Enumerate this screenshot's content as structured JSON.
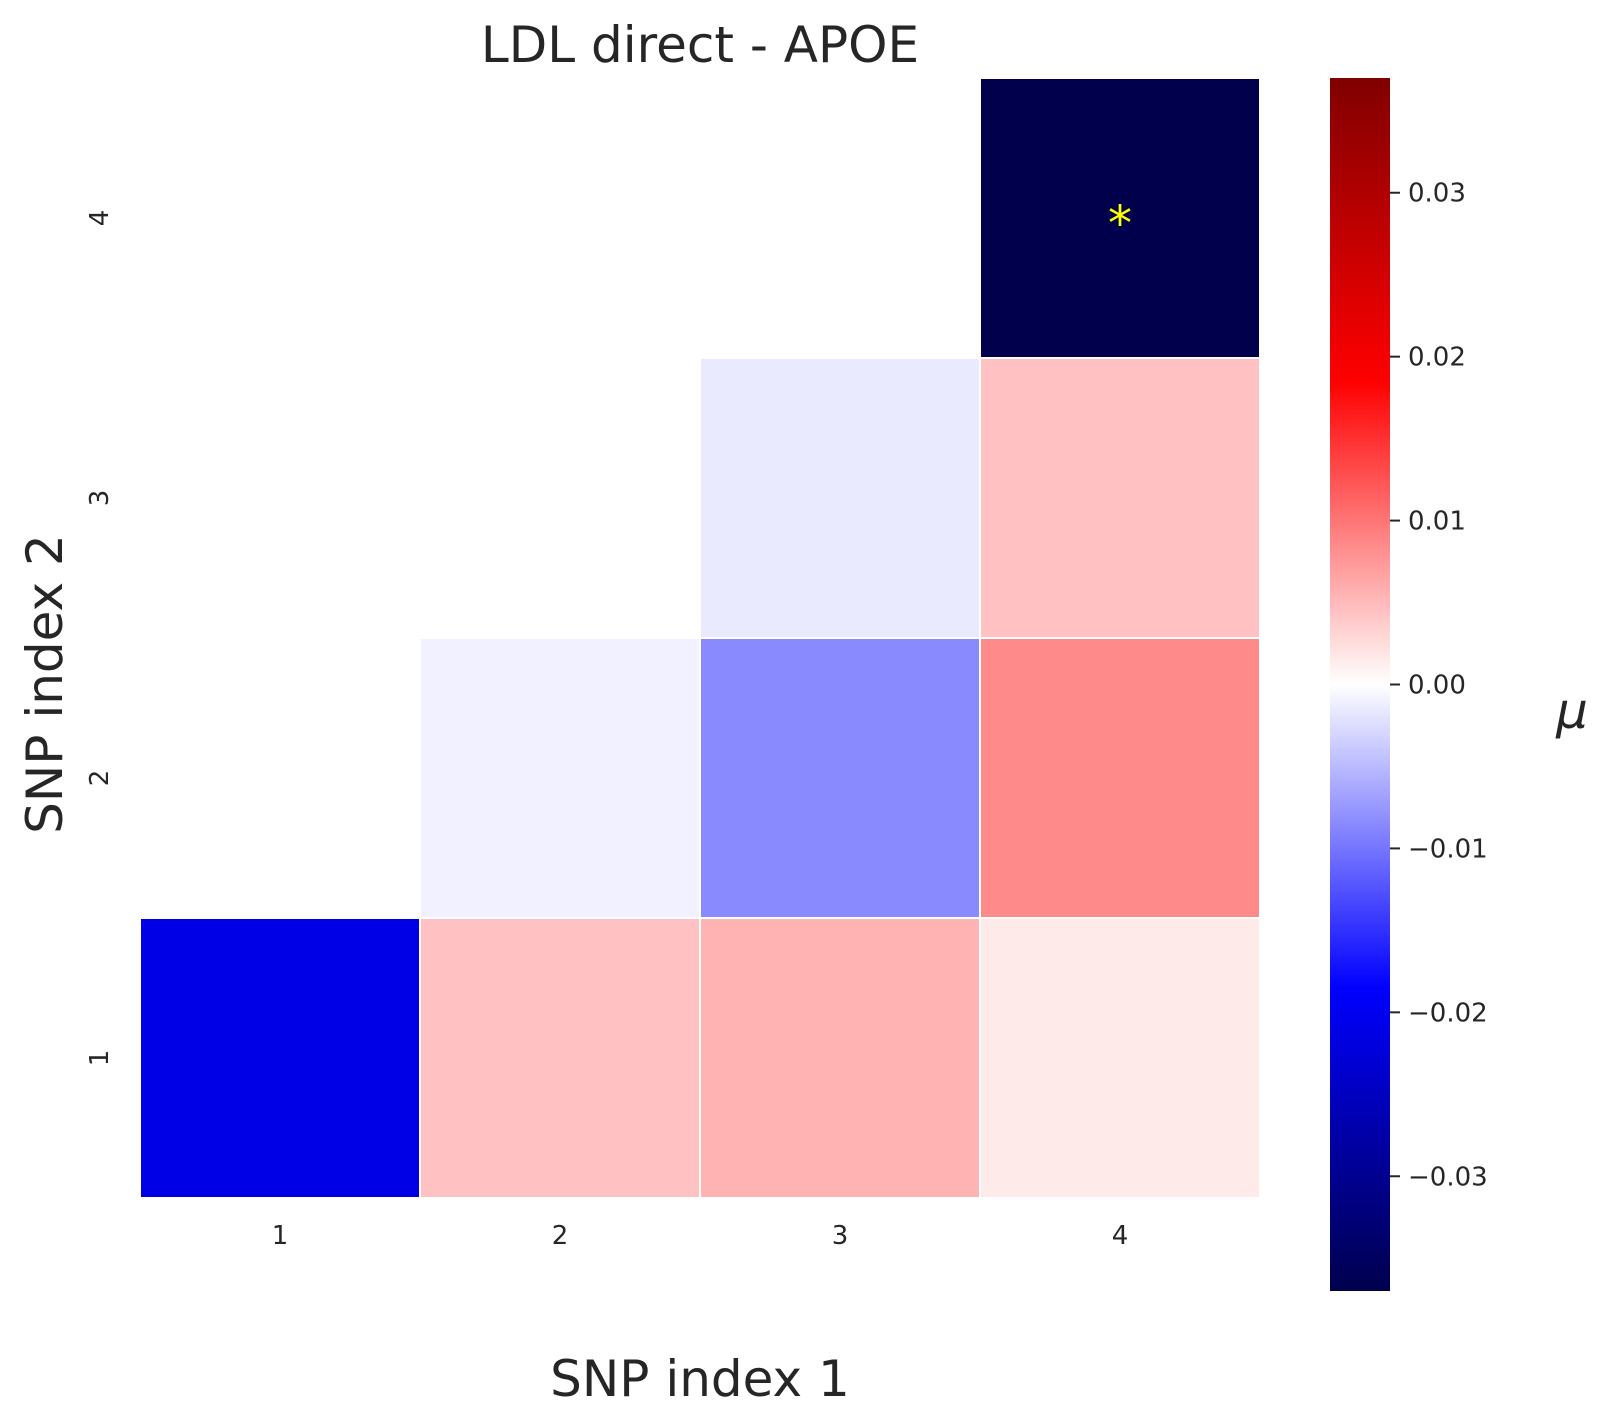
{
  "chart_data": {
    "type": "heatmap",
    "title": "LDL direct - APOE",
    "xlabel": "SNP index 1",
    "ylabel": "SNP index 2",
    "x_categories": [
      "1",
      "2",
      "3",
      "4"
    ],
    "y_categories": [
      "1",
      "2",
      "3",
      "4"
    ],
    "cells": [
      {
        "x": "1",
        "y": "1",
        "value": -0.021
      },
      {
        "x": "2",
        "y": "1",
        "value": 0.0045
      },
      {
        "x": "3",
        "y": "1",
        "value": 0.0055
      },
      {
        "x": "4",
        "y": "1",
        "value": 0.0015
      },
      {
        "x": "2",
        "y": "2",
        "value": -0.001
      },
      {
        "x": "3",
        "y": "2",
        "value": -0.0085
      },
      {
        "x": "4",
        "y": "2",
        "value": 0.0085
      },
      {
        "x": "3",
        "y": "3",
        "value": -0.0015
      },
      {
        "x": "4",
        "y": "3",
        "value": 0.0045
      },
      {
        "x": "4",
        "y": "4",
        "value": -0.037,
        "annotation": "*"
      }
    ],
    "colorbar": {
      "label": "μ",
      "range": [
        -0.037,
        0.037
      ],
      "ticks": [
        0.03,
        0.02,
        0.01,
        0.0,
        -0.01,
        -0.02,
        -0.03
      ],
      "tick_labels": [
        "0.03",
        "0.02",
        "0.01",
        "0.00",
        "−0.01",
        "−0.02",
        "−0.03"
      ],
      "colormap": "seismic"
    }
  }
}
